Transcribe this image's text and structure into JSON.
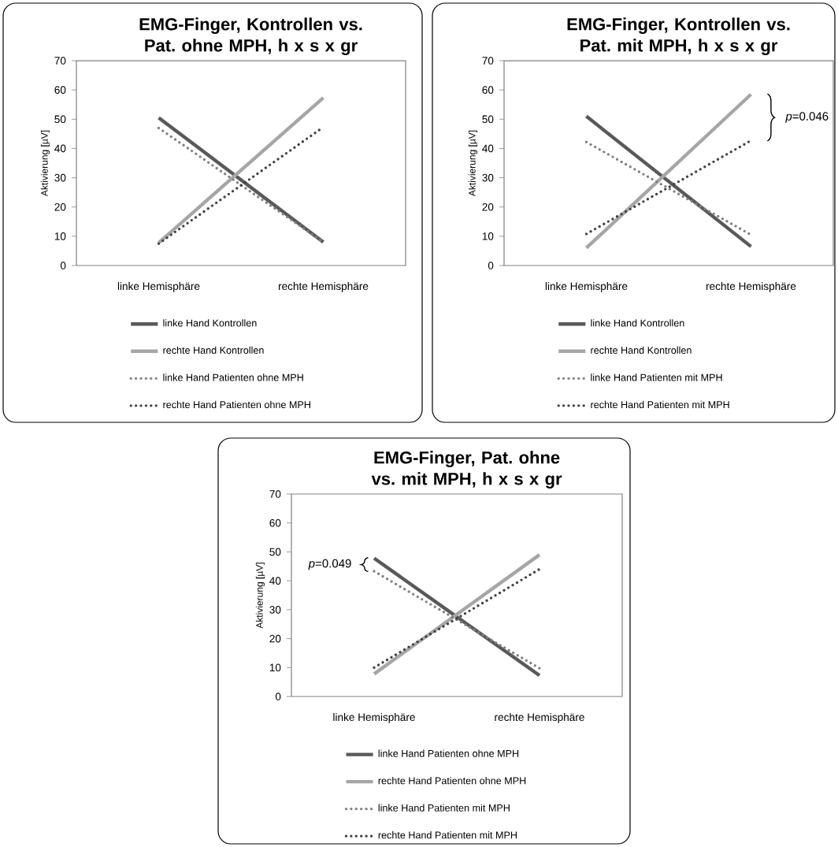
{
  "chart_data": [
    {
      "type": "line",
      "title": "EMG-Finger, Kontrollen vs. Pat. ohne MPH, h x s x gr",
      "ylabel": "Aktivierung [µV]",
      "categories": [
        "linke Hemisphäre",
        "rechte Hemisphäre"
      ],
      "ylim": [
        0,
        70
      ],
      "yticks": [
        0,
        10,
        20,
        30,
        40,
        50,
        60,
        70
      ],
      "legend": "bottom",
      "series": [
        {
          "name": "linke Hand Kontrollen",
          "color": "#595959",
          "line_style": "solid",
          "values": [
            50.5,
            8
          ]
        },
        {
          "name": "rechte Hand Kontrollen",
          "color": "#a6a6a6",
          "line_style": "solid",
          "values": [
            7.8,
            57.3
          ]
        },
        {
          "name": "linke Hand Patienten ohne MPH",
          "color": "#808080",
          "line_style": "dotted",
          "values": [
            47,
            8
          ]
        },
        {
          "name": "rechte Hand Patienten ohne MPH",
          "color": "#404040",
          "line_style": "dotted",
          "values": [
            7.5,
            47.3
          ]
        }
      ]
    },
    {
      "type": "line",
      "title": "EMG-Finger, Kontrollen vs. Pat. mit MPH, h x s x gr",
      "ylabel": "Aktivierung [µV]",
      "categories": [
        "linke Hemisphäre",
        "rechte Hemisphäre"
      ],
      "ylim": [
        0,
        70
      ],
      "yticks": [
        0,
        10,
        20,
        30,
        40,
        50,
        60,
        70
      ],
      "legend": "bottom",
      "annotations": [
        "*p*=0.046"
      ],
      "series": [
        {
          "name": "linke Hand Kontrollen",
          "color": "#595959",
          "line_style": "solid",
          "values": [
            51,
            6.5
          ]
        },
        {
          "name": "rechte Hand Kontrollen",
          "color": "#a6a6a6",
          "line_style": "solid",
          "values": [
            6,
            58.5
          ]
        },
        {
          "name": "linke Hand Patienten mit MPH",
          "color": "#808080",
          "line_style": "dotted",
          "values": [
            42.2,
            10.5
          ]
        },
        {
          "name": "rechte Hand Patienten mit MPH",
          "color": "#404040",
          "line_style": "dotted",
          "values": [
            10.8,
            42.7
          ]
        }
      ]
    },
    {
      "type": "line",
      "title": "EMG-Finger, Pat. ohne vs. mit MPH, h x s x gr",
      "ylabel": "Aktivierung [µV]",
      "categories": [
        "linke Hemisphäre",
        "rechte Hemisphäre"
      ],
      "ylim": [
        0,
        70
      ],
      "yticks": [
        0,
        10,
        20,
        30,
        40,
        50,
        60,
        70
      ],
      "legend": "bottom",
      "annotations": [
        "*p*=0.049"
      ],
      "series": [
        {
          "name": "linke Hand Patienten ohne MPH",
          "color": "#595959",
          "line_style": "solid",
          "values": [
            47.8,
            7.3
          ]
        },
        {
          "name": "rechte Hand Patienten ohne MPH",
          "color": "#a6a6a6",
          "line_style": "solid",
          "values": [
            7.8,
            49
          ]
        },
        {
          "name": "linke Hand Patienten mit MPH",
          "color": "#808080",
          "line_style": "dotted",
          "values": [
            43.3,
            9.8
          ]
        },
        {
          "name": "rechte Hand Patienten mit MPH",
          "color": "#404040",
          "line_style": "dotted",
          "values": [
            10,
            44
          ]
        }
      ]
    }
  ]
}
